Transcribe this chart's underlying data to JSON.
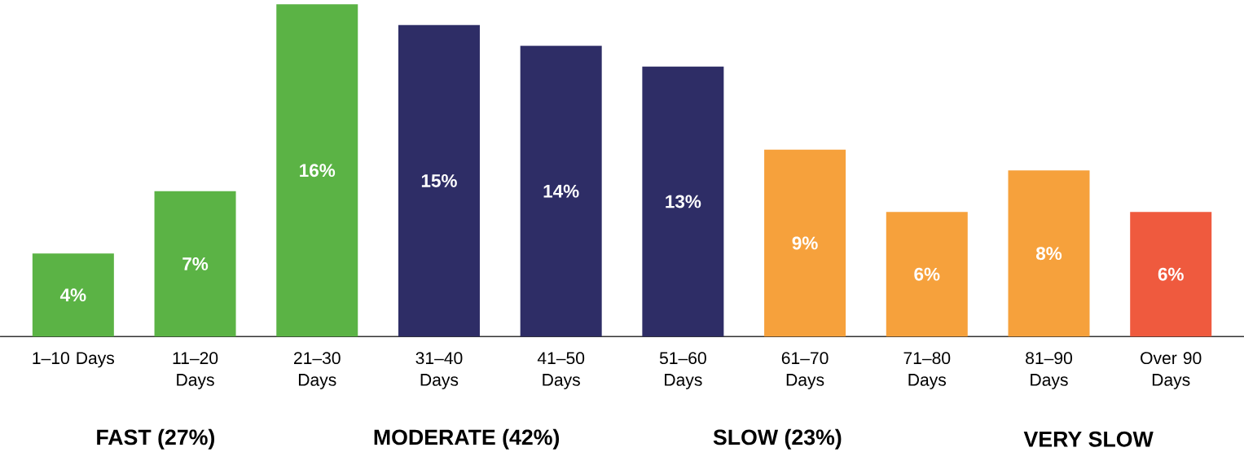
{
  "chart_data": {
    "type": "bar",
    "categories": [
      "1–10 Days",
      "11–20 Days",
      "21–30 Days",
      "31–40 Days",
      "41–50 Days",
      "51–60 Days",
      "61–70 Days",
      "71–80 Days",
      "81–90 Days",
      "Over 90 Days"
    ],
    "values": [
      4,
      7,
      16,
      15,
      14,
      13,
      9,
      6,
      8,
      6
    ],
    "colors": [
      "#5bb345",
      "#5bb345",
      "#5bb345",
      "#2e2d66",
      "#2e2d66",
      "#2e2d66",
      "#f6a13c",
      "#f6a13c",
      "#f6a13c",
      "#ef5a3e"
    ],
    "value_labels": [
      "4%",
      "7%",
      "16%",
      "15%",
      "14%",
      "13%",
      "9%",
      "6%",
      "8%",
      "6%"
    ],
    "annotations": [
      "FAST (27%)",
      "MODERATE (42%)",
      "SLOW (23%)",
      "VERY SLOW"
    ]
  }
}
